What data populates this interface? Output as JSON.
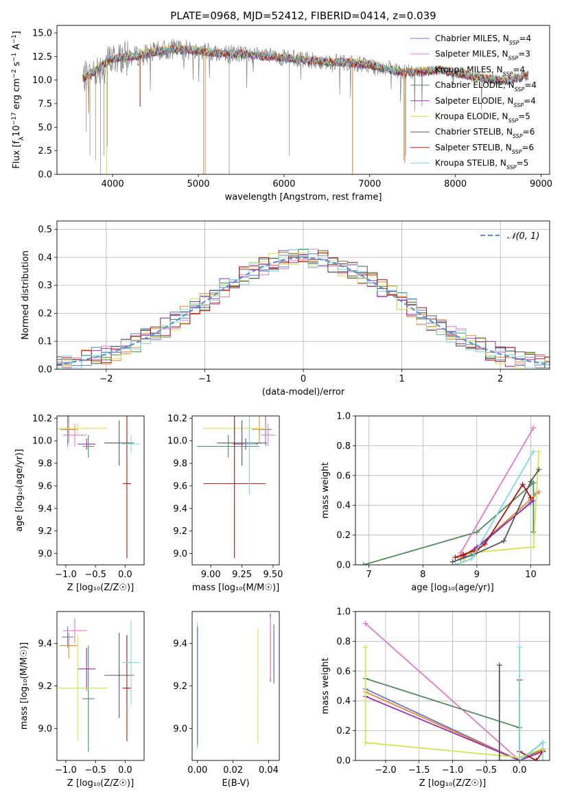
{
  "chart_data": [
    {
      "id": "spectrum",
      "type": "line",
      "title": "PLATE=0968, MJD=52412, FIBERID=0414, z=0.039",
      "xlabel": "wavelength [Angstrom, rest frame]",
      "ylabel_parts": {
        "prefix": "Flux [f",
        "sub": "λ",
        "mid": "10",
        "exp1": "−17",
        "mid2": " erg cm",
        "exp2": "−2",
        "mid3": " s",
        "exp3": "−1",
        "mid4": " A",
        "exp4": "−1",
        "suffix": "]"
      },
      "xlim": [
        3350,
        9100
      ],
      "ylim": [
        0,
        15.8
      ],
      "xticks": [
        4000,
        5000,
        6000,
        7000,
        8000,
        9000
      ],
      "yticks": [
        0.0,
        2.5,
        5.0,
        7.5,
        10.0,
        12.5,
        15.0
      ],
      "ytick_labels": [
        "0.0",
        "2.5",
        "5.0",
        "7.5",
        "10.0",
        "12.5",
        "15.0"
      ],
      "legend_position": "upper-right",
      "legend": [
        {
          "base": "Chabrier MILES, N",
          "sub": "SSP",
          "tail": "=4",
          "color": "#5b7bd6"
        },
        {
          "base": "Salpeter MILES, N",
          "sub": "SSP",
          "tail": "=3",
          "color": "#e377c2"
        },
        {
          "base": "Kroupa MILES, N",
          "sub": "SSP",
          "tail": "=4",
          "color": "#e8862a"
        },
        {
          "base": "Chabrier ELODIE, N",
          "sub": "SSP",
          "tail": "=4",
          "color": "#4f8a5b"
        },
        {
          "base": "Salpeter ELODIE, N",
          "sub": "SSP",
          "tail": "=4",
          "color": "#9b2fae"
        },
        {
          "base": "Kroupa ELODIE, N",
          "sub": "SSP",
          "tail": "=5",
          "color": "#cde84a"
        },
        {
          "base": "Chabrier STELIB, N",
          "sub": "SSP",
          "tail": "=6",
          "color": "#555555"
        },
        {
          "base": "Salpeter STELIB, N",
          "sub": "SSP",
          "tail": "=6",
          "color": "#b01010"
        },
        {
          "base": "Kroupa STELIB, N",
          "sub": "SSP",
          "tail": "=5",
          "color": "#7fd8e0"
        }
      ],
      "model_curve_points": [
        [
          3650,
          10.2
        ],
        [
          3800,
          11.0
        ],
        [
          3950,
          12.1
        ],
        [
          4100,
          12.4
        ],
        [
          4300,
          12.6
        ],
        [
          4500,
          13.0
        ],
        [
          4700,
          13.3
        ],
        [
          4900,
          13.2
        ],
        [
          5100,
          13.0
        ],
        [
          5300,
          12.8
        ],
        [
          5500,
          12.8
        ],
        [
          5800,
          12.5
        ],
        [
          6100,
          12.3
        ],
        [
          6400,
          12.0
        ],
        [
          6700,
          11.9
        ],
        [
          7000,
          11.6
        ],
        [
          7200,
          11.2
        ],
        [
          7400,
          10.8
        ],
        [
          7600,
          10.9
        ],
        [
          7800,
          11.1
        ],
        [
          8000,
          10.8
        ],
        [
          8200,
          10.4
        ],
        [
          8400,
          10.1
        ],
        [
          8600,
          10.0
        ],
        [
          8850,
          10.5
        ]
      ],
      "data_note": "observed spectrum shown as noisy grey line; models overplotted"
    },
    {
      "id": "residuals",
      "type": "histogram",
      "xlabel": "(data-model)/error",
      "ylabel": "Normed distribution",
      "xlim": [
        -2.5,
        2.5
      ],
      "ylim": [
        0,
        0.53
      ],
      "xticks": [
        -2,
        -1,
        0,
        1,
        2
      ],
      "xtick_labels": [
        "−2",
        "−1",
        "0",
        "1",
        "2"
      ],
      "yticks": [
        0.0,
        0.1,
        0.2,
        0.3,
        0.4,
        0.5
      ],
      "ytick_labels": [
        "0.0",
        "0.1",
        "0.2",
        "0.3",
        "0.4",
        "0.5"
      ],
      "grid": true,
      "legend_position": "upper-right",
      "gaussian_label": "𝒩(0, 1)",
      "gaussian_color": "#5b8fd6",
      "bin_width": 0.1
    },
    {
      "id": "age-vs-Z",
      "type": "errorbar",
      "xlabel": "Z [log₁₀(Z/Z☉)]",
      "ylabel": "age  [log₁₀(age/yr)]",
      "xlim": [
        -1.15,
        0.32
      ],
      "ylim": [
        8.9,
        10.22
      ],
      "xticks": [
        -1.0,
        -0.5,
        0.0
      ],
      "xtick_labels": [
        "−1.0",
        "−0.5",
        "0.0"
      ],
      "yticks": [
        9.0,
        9.2,
        9.4,
        9.6,
        9.8,
        10.0,
        10.2
      ],
      "ytick_labels": [
        "9.0",
        "9.2",
        "9.4",
        "9.6",
        "9.8",
        "10.0",
        "10.2"
      ],
      "points": [
        {
          "x": -0.97,
          "xerr": 0.1,
          "y": 10.1,
          "yerr": 0.15,
          "color": "#5b7bd6"
        },
        {
          "x": -0.85,
          "xerr": 0.2,
          "y": 10.05,
          "yerr": 0.1,
          "color": "#e377c2"
        },
        {
          "x": -0.95,
          "xerr": 0.15,
          "y": 10.1,
          "yerr": 0.12,
          "color": "#e8862a"
        },
        {
          "x": -0.62,
          "xerr": 0.1,
          "y": 9.95,
          "yerr": 0.1,
          "color": "#4f8a5b"
        },
        {
          "x": -0.65,
          "xerr": 0.15,
          "y": 9.97,
          "yerr": 0.05,
          "color": "#9b2fae"
        },
        {
          "x": -0.8,
          "xerr": 0.5,
          "y": 10.11,
          "yerr": 0.05,
          "color": "#cde84a"
        },
        {
          "x": -0.1,
          "xerr": 0.25,
          "y": 9.98,
          "yerr": 0.2,
          "color": "#555555"
        },
        {
          "x": 0.03,
          "xerr": 0.07,
          "y": 9.62,
          "yerr": 0.66,
          "color": "#b01010"
        },
        {
          "x": 0.1,
          "xerr": 0.15,
          "y": 9.97,
          "yerr": 0.08,
          "color": "#7fd8e0"
        }
      ]
    },
    {
      "id": "age-vs-mass",
      "type": "errorbar",
      "xlabel": "mass [log₁₀(M/M☉)]",
      "ylabel": "",
      "xlim": [
        8.85,
        9.55
      ],
      "ylim": [
        8.9,
        10.22
      ],
      "xticks": [
        9.0,
        9.25,
        9.5
      ],
      "xtick_labels": [
        "9.00",
        "9.25",
        "9.50"
      ],
      "yticks": [
        9.0,
        9.2,
        9.4,
        9.6,
        9.8,
        10.0,
        10.2
      ],
      "ytick_labels": [
        "9.0",
        "9.2",
        "9.4",
        "9.6",
        "9.8",
        "10.0",
        "10.2"
      ],
      "points": [
        {
          "x": 9.44,
          "xerr": 0.05,
          "y": 10.1,
          "yerr": 0.15,
          "color": "#5b7bd6"
        },
        {
          "x": 9.46,
          "xerr": 0.06,
          "y": 10.05,
          "yerr": 0.1,
          "color": "#e377c2"
        },
        {
          "x": 9.39,
          "xerr": 0.06,
          "y": 10.1,
          "yerr": 0.12,
          "color": "#e8862a"
        },
        {
          "x": 9.14,
          "xerr": 0.25,
          "y": 9.95,
          "yerr": 0.1,
          "color": "#4f8a5b"
        },
        {
          "x": 9.28,
          "xerr": 0.1,
          "y": 9.97,
          "yerr": 0.05,
          "color": "#9b2fae"
        },
        {
          "x": 9.19,
          "xerr": 0.25,
          "y": 10.11,
          "yerr": 0.05,
          "color": "#cde84a"
        },
        {
          "x": 9.25,
          "xerr": 0.2,
          "y": 9.98,
          "yerr": 0.2,
          "color": "#555555"
        },
        {
          "x": 9.19,
          "xerr": 0.25,
          "y": 9.62,
          "yerr": 0.66,
          "color": "#b01010"
        },
        {
          "x": 9.31,
          "xerr": 0.05,
          "y": 9.97,
          "yerr": 0.45,
          "color": "#7fd8e0"
        }
      ]
    },
    {
      "id": "massweight-vs-age",
      "type": "line",
      "xlabel": "age  [log₁₀(age/yr)]",
      "ylabel": "mass weight",
      "xlim": [
        6.75,
        10.35
      ],
      "ylim": [
        0,
        1.0
      ],
      "xticks": [
        7,
        8,
        9,
        10
      ],
      "xtick_labels": [
        "7",
        "8",
        "9",
        "10"
      ],
      "yticks": [
        0.0,
        0.2,
        0.4,
        0.6,
        0.8,
        1.0
      ],
      "ytick_labels": [
        "0.0",
        "0.2",
        "0.4",
        "0.6",
        "0.8",
        "1.0"
      ],
      "grid": true,
      "series": [
        {
          "color": "#4f8a5b",
          "x": [
            6.9,
            9.0,
            10.05,
            10.05
          ],
          "y": [
            0.0,
            0.22,
            0.55,
            0.22
          ]
        },
        {
          "color": "#5b7bd6",
          "x": [
            8.7,
            8.9,
            10.0,
            10.1
          ],
          "y": [
            0.04,
            0.08,
            0.42,
            0.48
          ]
        },
        {
          "color": "#e8862a",
          "x": [
            8.7,
            8.95,
            10.0,
            10.15
          ],
          "y": [
            0.05,
            0.1,
            0.44,
            0.49
          ]
        },
        {
          "color": "#9b2fae",
          "x": [
            8.75,
            9.0,
            10.05
          ],
          "y": [
            0.06,
            0.12,
            0.43
          ]
        },
        {
          "color": "#e377c2",
          "x": [
            8.7,
            10.05
          ],
          "y": [
            0.08,
            0.92
          ]
        },
        {
          "color": "#cde84a",
          "x": [
            8.75,
            8.85,
            10.05,
            10.15
          ],
          "y": [
            0.02,
            0.08,
            0.12,
            0.76
          ]
        },
        {
          "color": "#555555",
          "x": [
            8.55,
            8.95,
            9.5,
            10.0,
            10.15
          ],
          "y": [
            0.02,
            0.07,
            0.16,
            0.56,
            0.64
          ]
        },
        {
          "color": "#b01010",
          "x": [
            8.6,
            8.75,
            9.0,
            9.15,
            9.85,
            10.0
          ],
          "y": [
            0.05,
            0.07,
            0.1,
            0.14,
            0.54,
            0.45
          ]
        },
        {
          "color": "#7fd8e0",
          "x": [
            8.6,
            8.9,
            10.05
          ],
          "y": [
            0.0,
            0.04,
            0.76
          ]
        }
      ]
    },
    {
      "id": "mass-vs-Z",
      "type": "errorbar",
      "xlabel": "Z [log₁₀(Z/Z☉)]",
      "ylabel": "mass [log₁₀(M/M☉)]",
      "xlim": [
        -1.15,
        0.32
      ],
      "ylim": [
        8.85,
        9.55
      ],
      "xticks": [
        -1.0,
        -0.5,
        0.0
      ],
      "xtick_labels": [
        "−1.0",
        "−0.5",
        "0.0"
      ],
      "yticks": [
        9.0,
        9.2,
        9.4
      ],
      "ytick_labels": [
        "9.0",
        "9.2",
        "9.4"
      ],
      "points": [
        {
          "x": -0.97,
          "xerr": 0.1,
          "y": 9.43,
          "yerr": 0.05,
          "color": "#5b7bd6"
        },
        {
          "x": -0.85,
          "xerr": 0.2,
          "y": 9.46,
          "yerr": 0.06,
          "color": "#e377c2"
        },
        {
          "x": -0.95,
          "xerr": 0.15,
          "y": 9.39,
          "yerr": 0.06,
          "color": "#e8862a"
        },
        {
          "x": -0.62,
          "xerr": 0.1,
          "y": 9.14,
          "yerr": 0.25,
          "color": "#4f8a5b"
        },
        {
          "x": -0.65,
          "xerr": 0.15,
          "y": 9.28,
          "yerr": 0.1,
          "color": "#9b2fae"
        },
        {
          "x": -0.8,
          "xerr": 0.5,
          "y": 9.19,
          "yerr": 0.25,
          "color": "#cde84a"
        },
        {
          "x": -0.1,
          "xerr": 0.25,
          "y": 9.25,
          "yerr": 0.2,
          "color": "#555555"
        },
        {
          "x": 0.03,
          "xerr": 0.07,
          "y": 9.19,
          "yerr": 0.25,
          "color": "#b01010"
        },
        {
          "x": 0.1,
          "xerr": 0.15,
          "y": 9.31,
          "yerr": 0.2,
          "color": "#7fd8e0"
        }
      ]
    },
    {
      "id": "mass-vs-ebv",
      "type": "errorbar",
      "xlabel": "E(B-V)",
      "ylabel": "",
      "xlim": [
        -0.003,
        0.046
      ],
      "ylim": [
        8.85,
        9.55
      ],
      "xticks": [
        0.0,
        0.02,
        0.04
      ],
      "xtick_labels": [
        "0.00",
        "0.02",
        "0.04"
      ],
      "yticks": [
        9.0,
        9.2,
        9.4
      ],
      "ytick_labels": [
        "9.0",
        "9.2",
        "9.4"
      ],
      "points": [
        {
          "x": 0.0,
          "y": 9.2,
          "yerr": 0.3,
          "color": "#7fd8e0"
        },
        {
          "x": 0.0,
          "y": 9.2,
          "yerr": 0.28,
          "color": "#4f8a5b"
        },
        {
          "x": 0.0,
          "y": 9.2,
          "yerr": 0.27,
          "color": "#5b7bd6"
        },
        {
          "x": 0.034,
          "y": 9.2,
          "yerr": 0.27,
          "color": "#cde84a"
        },
        {
          "x": 0.041,
          "y": 9.38,
          "yerr": 0.16,
          "color": "#9b2fae"
        },
        {
          "x": 0.041,
          "y": 9.38,
          "yerr": 0.14,
          "color": "#e377c2"
        },
        {
          "x": 0.043,
          "y": 9.35,
          "yerr": 0.13,
          "color": "#e8862a"
        },
        {
          "x": 0.043,
          "y": 9.35,
          "yerr": 0.14,
          "color": "#5b7bd6"
        }
      ]
    },
    {
      "id": "massweight-vs-Z",
      "type": "line",
      "xlabel": "Z [log₁₀(Z/Z☉)]",
      "ylabel": "mass weight",
      "xlim": [
        -2.45,
        0.45
      ],
      "ylim": [
        0,
        1.0
      ],
      "xticks": [
        -2.0,
        -1.5,
        -1.0,
        -0.5,
        0.0
      ],
      "xtick_labels": [
        "−2.0",
        "−1.5",
        "−1.0",
        "−0.5",
        "0.0"
      ],
      "yticks": [
        0.0,
        0.2,
        0.4,
        0.6,
        0.8,
        1.0
      ],
      "ytick_labels": [
        "0.0",
        "0.2",
        "0.4",
        "0.6",
        "0.8",
        "1.0"
      ],
      "grid": true,
      "series": [
        {
          "color": "#e377c2",
          "x": [
            -2.3,
            0.0,
            0.35
          ],
          "y": [
            0.92,
            0.0,
            0.08
          ]
        },
        {
          "color": "#4f8a5b",
          "x": [
            -2.3,
            0.0
          ],
          "y": [
            0.55,
            0.22
          ]
        },
        {
          "color": "#5b7bd6",
          "x": [
            -2.3,
            0.0,
            0.35
          ],
          "y": [
            0.48,
            0.0,
            0.08
          ]
        },
        {
          "color": "#e8862a",
          "x": [
            -2.3,
            0.0,
            0.35
          ],
          "y": [
            0.46,
            0.0,
            0.07
          ]
        },
        {
          "color": "#9b2fae",
          "x": [
            -2.3,
            0.0,
            0.35
          ],
          "y": [
            0.43,
            0.0,
            0.06
          ]
        },
        {
          "color": "#cde84a",
          "x": [
            -2.3,
            -2.3,
            0.0,
            0.35
          ],
          "y": [
            0.76,
            0.12,
            0.02,
            0.08
          ]
        },
        {
          "color": "#555555",
          "x": [
            -0.3,
            -0.3,
            0.0,
            0.35
          ],
          "y": [
            0.64,
            0.0,
            0.0,
            0.12
          ]
        },
        {
          "color": "#b01010",
          "x": [
            0.0,
            0.0,
            0.25,
            0.35
          ],
          "y": [
            0.54,
            0.06,
            0.0,
            0.06
          ]
        },
        {
          "color": "#7fd8e0",
          "x": [
            0.0,
            0.0,
            0.35,
            0.35
          ],
          "y": [
            0.76,
            0.0,
            0.12,
            0.0
          ]
        }
      ]
    }
  ]
}
